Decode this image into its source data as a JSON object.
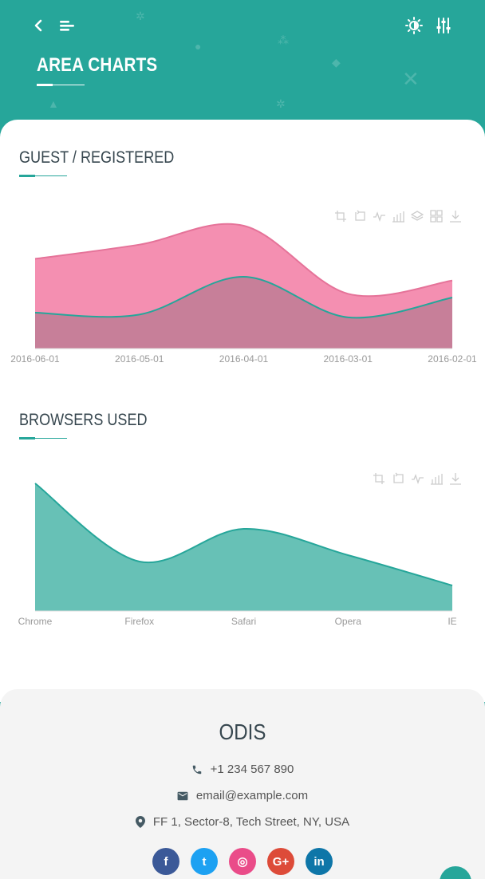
{
  "header": {
    "title": "AREA CHARTS",
    "back_icon": "chevron-left-icon",
    "menu_icon": "menu-lines-icon",
    "theme_icon": "sun-icon",
    "settings_icon": "sliders-icon"
  },
  "colors": {
    "primary": "#26a69a",
    "pink": "#f48fb1",
    "pink_line": "#e57399",
    "overlap": "#c77f99",
    "teal_fill": "#67c1b6",
    "text_dark": "#37474f"
  },
  "sections": {
    "guest": {
      "title": "GUEST / REGISTERED"
    },
    "browsers": {
      "title": "BROWSERS USED"
    }
  },
  "toolbox_icons_1": [
    "crop-icon",
    "undo-icon",
    "line-chart-icon",
    "bar-chart-icon",
    "layers-icon",
    "grid-icon",
    "download-icon"
  ],
  "toolbox_icons_2": [
    "crop-icon",
    "undo-icon",
    "line-chart-icon",
    "bar-chart-icon",
    "download-icon"
  ],
  "chart_data": [
    {
      "type": "area",
      "categories": [
        "2016-06-01",
        "2016-05-01",
        "2016-04-01",
        "2016-03-01",
        "2016-02-01"
      ],
      "series": [
        {
          "values": [
            95,
            110,
            130,
            58,
            72
          ],
          "color": "#f48fb1"
        },
        {
          "values": [
            38,
            36,
            76,
            33,
            54
          ],
          "color": "#26a69a"
        }
      ],
      "ylim": [
        0,
        130
      ],
      "legend": "none",
      "grid": false
    },
    {
      "type": "area",
      "categories": [
        "Chrome",
        "Firefox",
        "Safari",
        "Opera",
        "IE"
      ],
      "series": [
        {
          "values": [
            160,
            62,
            103,
            70,
            32
          ],
          "color": "#26a69a"
        }
      ],
      "ylim": [
        0,
        160
      ],
      "legend": "none",
      "grid": false
    }
  ],
  "footer": {
    "brand": "ODIS",
    "phone": "+1 234 567 890",
    "email": "email@example.com",
    "address": "FF 1, Sector-8, Tech Street, NY, USA",
    "socials": [
      {
        "name": "facebook",
        "glyph": "f",
        "color": "#3b5998"
      },
      {
        "name": "twitter",
        "glyph": "t",
        "color": "#1da1f2"
      },
      {
        "name": "dribbble",
        "glyph": "◎",
        "color": "#ea4c89"
      },
      {
        "name": "google-plus",
        "glyph": "G+",
        "color": "#dd4b39"
      },
      {
        "name": "linkedin",
        "glyph": "in",
        "color": "#0e76a8"
      }
    ]
  }
}
